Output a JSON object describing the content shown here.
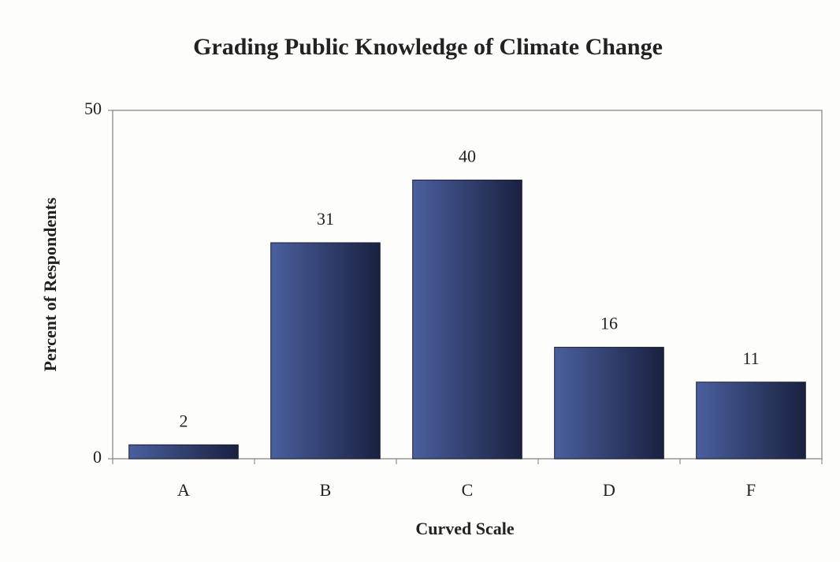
{
  "chart_data": {
    "type": "bar",
    "title": "Grading Public Knowledge of Climate Change",
    "x_label": "Curved Scale",
    "y_label": "Percent of Respondents",
    "categories": [
      "A",
      "B",
      "C",
      "D",
      "F"
    ],
    "values": [
      2,
      31,
      40,
      16,
      11
    ],
    "color": "#4a5f9e",
    "ylim": [
      0,
      50
    ],
    "yticks": [
      0,
      50
    ],
    "grid": false
  }
}
